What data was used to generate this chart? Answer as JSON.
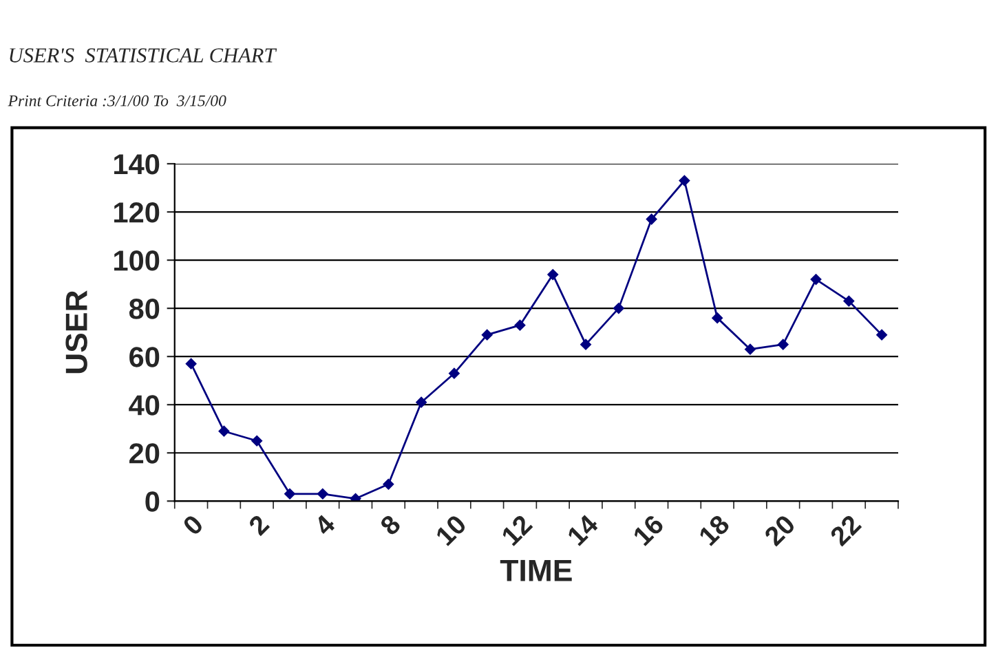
{
  "chart_data": {
    "type": "line",
    "title": "USER'S  STATISTICAL CHART",
    "subtitle": "Print Criteria :3/1/00 To  3/15/00",
    "xlabel": "TIME",
    "ylabel": "USER",
    "categories": [
      "0",
      null,
      "2",
      null,
      "4",
      null,
      "8",
      null,
      "10",
      null,
      "12",
      null,
      "14",
      null,
      "16",
      null,
      "18",
      null,
      "20",
      null,
      "22",
      null
    ],
    "series": [
      {
        "color": "#000080",
        "values": [
          57,
          29,
          25,
          3,
          3,
          1,
          7,
          41,
          53,
          69,
          73,
          94,
          65,
          80,
          117,
          133,
          76,
          63,
          65,
          92,
          83,
          69
        ]
      }
    ],
    "ylim": [
      0,
      140
    ],
    "yticks": [
      0,
      20,
      40,
      60,
      80,
      100,
      120,
      140
    ],
    "grid": "y",
    "marker": "diamond",
    "line_style": "solid",
    "legend": false
  }
}
